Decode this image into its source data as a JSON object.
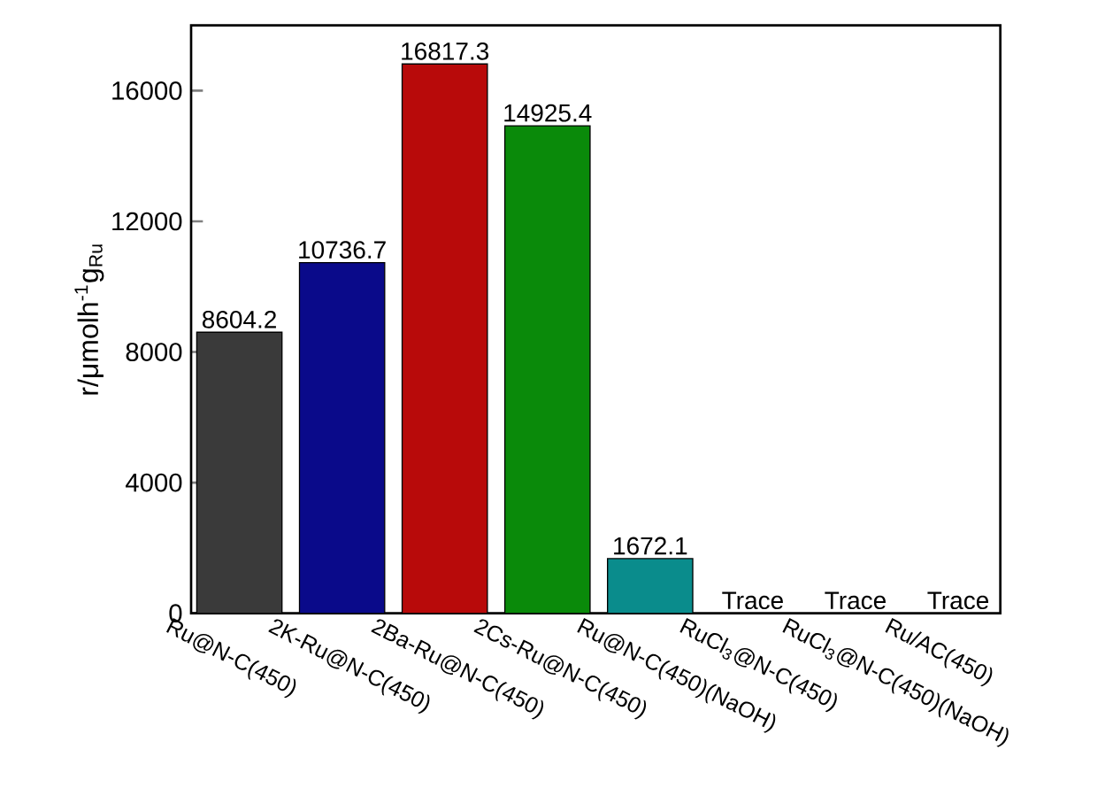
{
  "chart_data": {
    "type": "bar",
    "ylabel": "r/μmolh$^{-1}$g$_{Ru}$",
    "categories": [
      "Ru@N-C(450)",
      "2K-Ru@N-C(450)",
      "2Ba-Ru@N-C(450)",
      "2Cs-Ru@N-C(450)",
      "Ru@N-C(450)(NaOH)",
      "RuCl$_{3}$@N-C(450)",
      "RuCl$_{3}$@N-C(450)(NaOH)",
      "Ru/AC(450)"
    ],
    "values": [
      8604.2,
      10736.7,
      16817.3,
      14925.4,
      1672.1,
      null,
      null,
      null
    ],
    "colors": [
      "#3a3a3a",
      "#0a0a8a",
      "#b80a0a",
      "#0a8a0a",
      "#0a8c8c",
      "#0a8c8c",
      "#0a8c8c",
      "#0a8c8c"
    ],
    "value_labels": [
      "8604.2",
      "10736.7",
      "16817.3",
      "14925.4",
      "1672.1",
      "Trace",
      "Trace",
      "Trace"
    ],
    "ylim": [
      0,
      18000
    ],
    "yticks": [
      0,
      4000,
      8000,
      12000,
      16000
    ],
    "grid": false
  }
}
